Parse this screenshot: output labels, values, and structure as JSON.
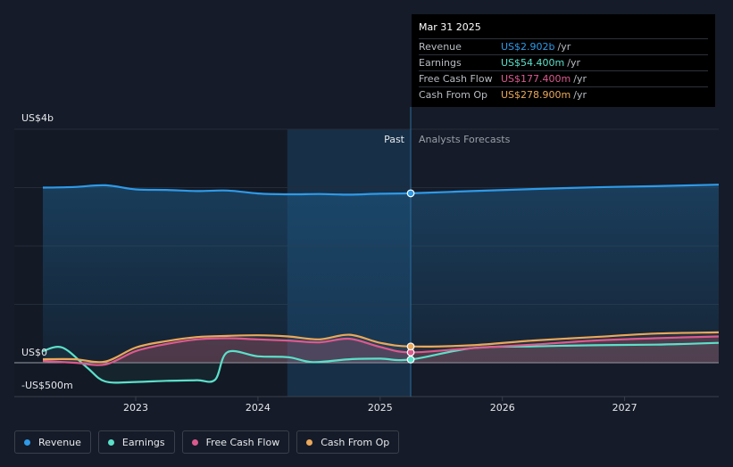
{
  "tooltip": {
    "date": "Mar 31 2025",
    "rows": [
      {
        "name": "Revenue",
        "value": "US$2.902b",
        "unit": "/yr",
        "color": "#2e9ae8"
      },
      {
        "name": "Earnings",
        "value": "US$54.400m",
        "unit": "/yr",
        "color": "#5be0c9"
      },
      {
        "name": "Free Cash Flow",
        "value": "US$177.400m",
        "unit": "/yr",
        "color": "#db5a8e"
      },
      {
        "name": "Cash From Op",
        "value": "US$278.900m",
        "unit": "/yr",
        "color": "#eaa85a"
      }
    ]
  },
  "zones": {
    "past_label": "Past",
    "forecast_label": "Analysts Forecasts"
  },
  "legend": [
    {
      "name": "Revenue",
      "color": "#2e9ae8"
    },
    {
      "name": "Earnings",
      "color": "#5be0c9"
    },
    {
      "name": "Free Cash Flow",
      "color": "#db5a8e"
    },
    {
      "name": "Cash From Op",
      "color": "#eaa85a"
    }
  ],
  "chart_data": {
    "type": "line",
    "title": "",
    "xlabel": "",
    "ylabel": "",
    "x_ticks": [
      2023,
      2024,
      2025,
      2026,
      2027
    ],
    "y_tick_labels": [
      {
        "value": 4000,
        "label": "US$4b"
      },
      {
        "value": 0,
        "label": "US$0"
      },
      {
        "value": -500,
        "label": "-US$500m"
      }
    ],
    "xlim": [
      2022.24,
      2027.77
    ],
    "ylim": [
      -560,
      4000
    ],
    "past_cutoff": 2025.25,
    "shaded_period_start": 2024.24,
    "series": [
      {
        "name": "Revenue",
        "color": "#2e9ae8",
        "points": [
          [
            2022.24,
            3000
          ],
          [
            2022.5,
            3010
          ],
          [
            2022.75,
            3040
          ],
          [
            2023.0,
            2970
          ],
          [
            2023.25,
            2960
          ],
          [
            2023.5,
            2940
          ],
          [
            2023.75,
            2950
          ],
          [
            2024.0,
            2900
          ],
          [
            2024.25,
            2885
          ],
          [
            2024.5,
            2890
          ],
          [
            2024.75,
            2880
          ],
          [
            2025.0,
            2895
          ],
          [
            2025.25,
            2902
          ],
          [
            2025.75,
            2940
          ],
          [
            2026.25,
            2975
          ],
          [
            2026.75,
            3005
          ],
          [
            2027.25,
            3025
          ],
          [
            2027.77,
            3050
          ]
        ]
      },
      {
        "name": "Earnings",
        "color": "#5be0c9",
        "points": [
          [
            2022.24,
            200
          ],
          [
            2022.4,
            260
          ],
          [
            2022.6,
            -80
          ],
          [
            2022.75,
            -320
          ],
          [
            2023.0,
            -330
          ],
          [
            2023.25,
            -310
          ],
          [
            2023.5,
            -300
          ],
          [
            2023.65,
            -290
          ],
          [
            2023.75,
            180
          ],
          [
            2024.0,
            110
          ],
          [
            2024.25,
            95
          ],
          [
            2024.45,
            10
          ],
          [
            2024.75,
            60
          ],
          [
            2025.0,
            70
          ],
          [
            2025.25,
            54.4
          ],
          [
            2025.75,
            250
          ],
          [
            2026.25,
            280
          ],
          [
            2026.75,
            300
          ],
          [
            2027.25,
            310
          ],
          [
            2027.77,
            340
          ]
        ]
      },
      {
        "name": "Free Cash Flow",
        "color": "#db5a8e",
        "points": [
          [
            2022.24,
            30
          ],
          [
            2022.5,
            0
          ],
          [
            2022.75,
            -30
          ],
          [
            2023.0,
            200
          ],
          [
            2023.25,
            320
          ],
          [
            2023.5,
            400
          ],
          [
            2023.75,
            420
          ],
          [
            2024.0,
            400
          ],
          [
            2024.25,
            380
          ],
          [
            2024.5,
            350
          ],
          [
            2024.75,
            410
          ],
          [
            2025.0,
            270
          ],
          [
            2025.25,
            177.4
          ],
          [
            2025.75,
            250
          ],
          [
            2026.25,
            310
          ],
          [
            2026.75,
            380
          ],
          [
            2027.25,
            420
          ],
          [
            2027.77,
            450
          ]
        ]
      },
      {
        "name": "Cash From Op",
        "color": "#eaa85a",
        "points": [
          [
            2022.24,
            60
          ],
          [
            2022.5,
            60
          ],
          [
            2022.75,
            20
          ],
          [
            2023.0,
            260
          ],
          [
            2023.25,
            370
          ],
          [
            2023.5,
            440
          ],
          [
            2023.75,
            460
          ],
          [
            2024.0,
            470
          ],
          [
            2024.25,
            450
          ],
          [
            2024.5,
            400
          ],
          [
            2024.75,
            480
          ],
          [
            2025.0,
            340
          ],
          [
            2025.25,
            278.9
          ],
          [
            2025.75,
            300
          ],
          [
            2026.25,
            380
          ],
          [
            2026.75,
            440
          ],
          [
            2027.25,
            500
          ],
          [
            2027.77,
            520
          ]
        ]
      }
    ]
  }
}
